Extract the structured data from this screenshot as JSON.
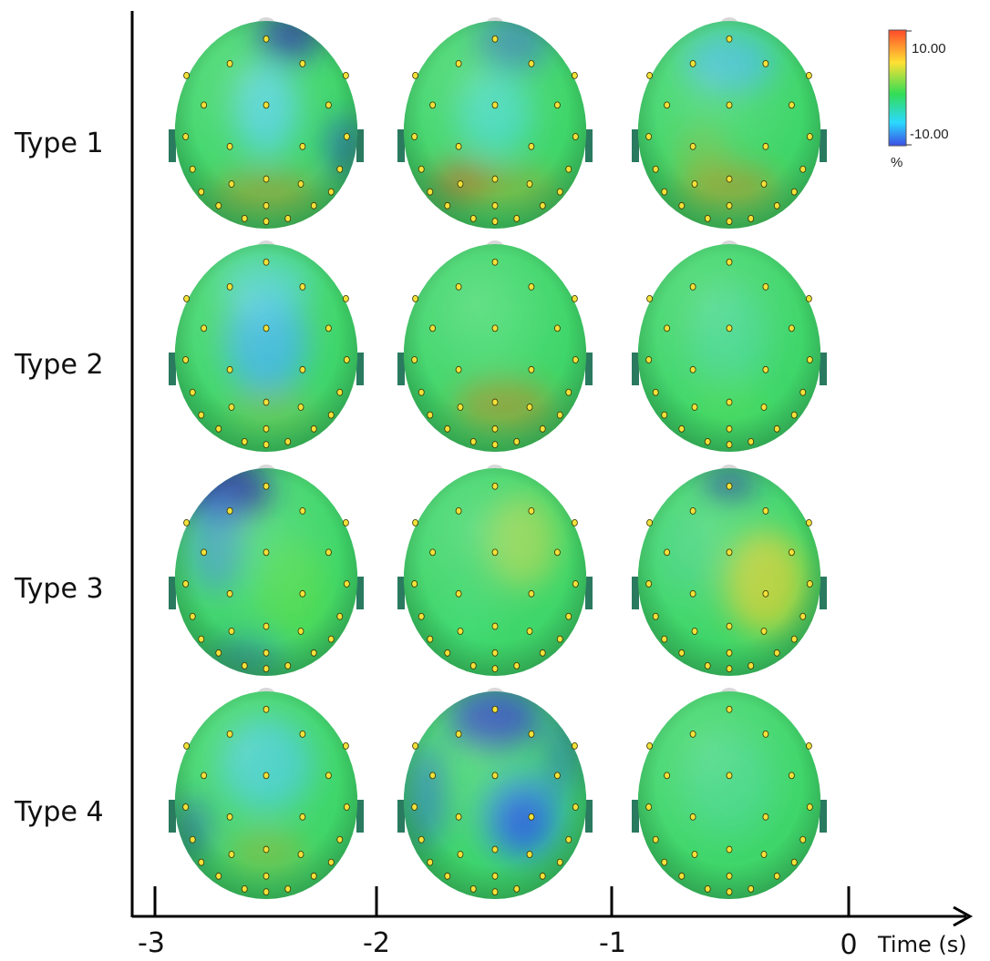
{
  "rows": [
    {
      "label": "Type 1"
    },
    {
      "label": "Type 2"
    },
    {
      "label": "Type 3"
    },
    {
      "label": "Type 4"
    }
  ],
  "time_axis": {
    "title": "Time (s)",
    "ticks": [
      "-3",
      "-2",
      "-1",
      "0"
    ]
  },
  "colorbar": {
    "max_label": "10.00",
    "min_label": "-10.00",
    "unit": "%",
    "colors": [
      "#ff4a2a",
      "#ffe033",
      "#33dd55",
      "#2bd9ff",
      "#3c4ee6"
    ]
  },
  "maps": [
    [
      {
        "blobs": [
          [
            0.0,
            -0.15,
            0.35,
            0.45,
            "#4fd0f0",
            0.75
          ],
          [
            0.25,
            -0.85,
            0.35,
            0.25,
            "#2030a0",
            0.8
          ],
          [
            0.0,
            0.65,
            0.6,
            0.2,
            "#c08a2a",
            0.55
          ],
          [
            0.85,
            0.2,
            0.2,
            0.3,
            "#2a50c0",
            0.6
          ]
        ]
      },
      {
        "blobs": [
          [
            0.0,
            -0.1,
            0.4,
            0.4,
            "#3fd8e8",
            0.6
          ],
          [
            0.2,
            -0.8,
            0.4,
            0.3,
            "#3060d0",
            0.55
          ],
          [
            -0.35,
            0.55,
            0.35,
            0.2,
            "#c0682a",
            0.7
          ],
          [
            0.2,
            0.6,
            0.5,
            0.2,
            "#b0a02a",
            0.5
          ]
        ]
      },
      {
        "blobs": [
          [
            0.0,
            -0.6,
            0.5,
            0.3,
            "#3ab8f0",
            0.7
          ],
          [
            0.0,
            0.6,
            0.55,
            0.22,
            "#c0902a",
            0.6
          ],
          [
            -0.3,
            0.3,
            0.3,
            0.3,
            "#a8b02a",
            0.35
          ]
        ]
      }
    ],
    [
      {
        "blobs": [
          [
            0.0,
            -0.05,
            0.45,
            0.5,
            "#3ab0f0",
            0.8
          ],
          [
            0.0,
            -0.6,
            0.5,
            0.3,
            "#50d0e8",
            0.6
          ],
          [
            0.05,
            0.6,
            0.5,
            0.2,
            "#a8b030",
            0.35
          ]
        ]
      },
      {
        "blobs": [
          [
            0.1,
            0.55,
            0.55,
            0.25,
            "#c08a2a",
            0.6
          ],
          [
            0.0,
            -0.3,
            0.4,
            0.4,
            "#48e070",
            0.3
          ]
        ]
      },
      {
        "blobs": [
          [
            0.0,
            -0.1,
            0.4,
            0.5,
            "#40d8b0",
            0.45
          ],
          [
            0.0,
            0.5,
            0.4,
            0.3,
            "#60e050",
            0.3
          ]
        ]
      }
    ],
    [
      {
        "blobs": [
          [
            -0.45,
            -0.8,
            0.5,
            0.3,
            "#1c2a9a",
            0.9
          ],
          [
            -0.55,
            -0.3,
            0.3,
            0.5,
            "#3a8ae0",
            0.6
          ],
          [
            0.3,
            0.2,
            0.4,
            0.5,
            "#60e040",
            0.5
          ],
          [
            -0.2,
            0.8,
            0.4,
            0.2,
            "#3060c0",
            0.4
          ]
        ]
      },
      {
        "blobs": [
          [
            0.3,
            -0.3,
            0.4,
            0.45,
            "#d8d840",
            0.5
          ],
          [
            -0.3,
            0.5,
            0.3,
            0.3,
            "#40e080",
            0.3
          ]
        ]
      },
      {
        "blobs": [
          [
            0.0,
            -0.85,
            0.3,
            0.12,
            "#2030a0",
            0.9
          ],
          [
            0.4,
            0.1,
            0.45,
            0.5,
            "#e8d030",
            0.7
          ],
          [
            -0.5,
            -0.2,
            0.3,
            0.4,
            "#40d090",
            0.4
          ]
        ]
      }
    ],
    [
      {
        "blobs": [
          [
            0.0,
            -0.3,
            0.5,
            0.45,
            "#3ac8f0",
            0.65
          ],
          [
            0.0,
            0.55,
            0.45,
            0.22,
            "#a8b030",
            0.45
          ],
          [
            -0.8,
            0.3,
            0.2,
            0.3,
            "#2a50c0",
            0.5
          ]
        ]
      },
      {
        "blobs": [
          [
            0.0,
            -0.75,
            0.5,
            0.3,
            "#2a40c0",
            0.85
          ],
          [
            0.3,
            0.25,
            0.28,
            0.28,
            "#2020b8",
            0.95
          ],
          [
            0.3,
            0.2,
            0.48,
            0.45,
            "#3090f0",
            0.6
          ],
          [
            -0.75,
            0.0,
            0.2,
            0.5,
            "#2a60d0",
            0.6
          ],
          [
            0.75,
            -0.4,
            0.2,
            0.4,
            "#2a50c0",
            0.5
          ]
        ]
      },
      {
        "blobs": [
          [
            0.0,
            -0.1,
            0.5,
            0.5,
            "#40d8a0",
            0.4
          ]
        ]
      }
    ]
  ]
}
